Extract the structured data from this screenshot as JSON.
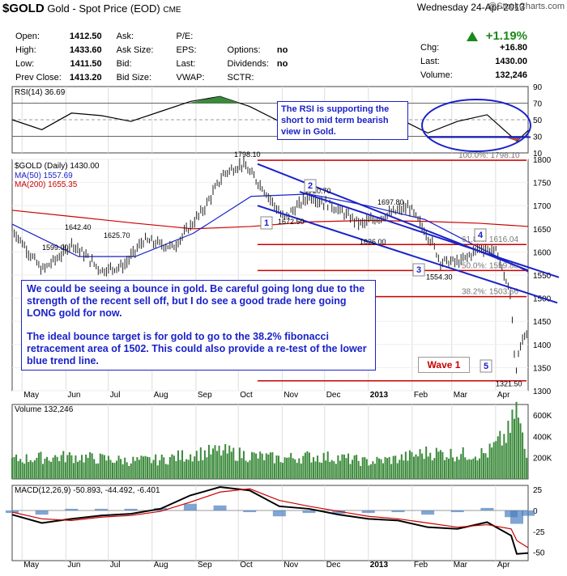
{
  "header": {
    "symbol": "$GOLD",
    "name": "Gold - Spot Price (EOD)",
    "exchange": "CME",
    "date": "Wednesday  24-Apr-2013",
    "logo": "@StockCharts.com"
  },
  "quote": {
    "rows": [
      [
        "Open:",
        "1412.50",
        "Ask:",
        "",
        "P/E:",
        "",
        "",
        ""
      ],
      [
        "High:",
        "1433.60",
        "Ask Size:",
        "",
        "EPS:",
        "",
        "Options:",
        "no"
      ],
      [
        "Low:",
        "1411.50",
        "Bid:",
        "",
        "Last:",
        "",
        "Dividends:",
        "no"
      ],
      [
        "Prev Close:",
        "1413.20",
        "Bid Size:",
        "",
        "VWAP:",
        "",
        "SCTR:",
        ""
      ]
    ],
    "pct_change": "+1.19%",
    "chg_label": "Chg:",
    "chg_value": "+16.80",
    "last_label": "Last:",
    "last_value": "1430.00",
    "volume_label": "Volume:",
    "volume_value": "132,246",
    "up_color": "#1a8a1a"
  },
  "annotations": {
    "rsi_note": "The RSI is supporting the short to mid term bearish view in Gold.",
    "main_note_1": "We could be seeing a bounce in gold.  Be careful going long due to the strength of the recent sell off, but I do see a good trade here going LONG gold for now.",
    "main_note_2": "The ideal bounce target is for gold to go to the 38.2% fibonacci retracement area of  1502.  This could also provide a re-test of the lower blue trend line.",
    "wave_label": "Wave 1",
    "wave_numbers": [
      "1",
      "2",
      "3",
      "4",
      "5"
    ],
    "fib_labels": [
      "100.0%: 1798.10",
      "61.8%: 1616.04",
      "50.0%: 1559.80",
      "38.2%: 1503.56"
    ],
    "price_points": [
      "1798.10",
      "1720.70",
      "1697.80",
      "1672.50",
      "1642.40",
      "1625.70",
      "1599.00",
      "1626.00",
      "1554.30",
      "1321.50"
    ]
  },
  "colors": {
    "accent": "#1a22c8",
    "fib": "#cc0000",
    "ma50": "#1a22c8",
    "ma200": "#cc0000",
    "rsi_fill": "#3b8a3b",
    "rsi_fill_dn": "#b05050"
  },
  "chart_data": [
    {
      "type": "line",
      "label": "RSI(14) 36.69",
      "ylim": [
        10,
        90
      ],
      "yticks": [
        10,
        30,
        50,
        70,
        90
      ],
      "x": [
        "2012-04-24",
        "2012-05-15",
        "2012-06-05",
        "2012-06-26",
        "2012-07-17",
        "2012-08-07",
        "2012-08-28",
        "2012-09-18",
        "2012-10-09",
        "2012-10-30",
        "2012-11-20",
        "2012-12-11",
        "2013-01-01",
        "2013-01-22",
        "2013-02-12",
        "2013-03-05",
        "2013-03-26",
        "2013-04-16",
        "2013-04-24"
      ],
      "values": [
        50,
        38,
        58,
        55,
        48,
        60,
        72,
        78,
        66,
        48,
        55,
        45,
        50,
        52,
        34,
        48,
        56,
        24,
        37
      ]
    },
    {
      "type": "line",
      "label": "$GOLD (Daily) 1430.00",
      "ylim": [
        1300,
        1800
      ],
      "yticks": [
        1300,
        1350,
        1400,
        1450,
        1500,
        1550,
        1600,
        1650,
        1700,
        1750,
        1800
      ],
      "xticks": [
        "May",
        "Jun",
        "Jul",
        "Aug",
        "Sep",
        "Oct",
        "Nov",
        "Dec",
        "2013",
        "Feb",
        "Mar",
        "Apr"
      ],
      "series": [
        {
          "name": "$GOLD (Daily) 1430.00",
          "x": [
            "2012-04-24",
            "2012-05-15",
            "2012-05-31",
            "2012-06-05",
            "2012-06-26",
            "2012-07-12",
            "2012-07-26",
            "2012-08-16",
            "2012-09-06",
            "2012-09-21",
            "2012-10-04",
            "2012-10-18",
            "2012-11-02",
            "2012-11-20",
            "2012-12-06",
            "2012-12-27",
            "2013-01-14",
            "2013-01-30",
            "2013-02-14",
            "2013-02-21",
            "2013-03-07",
            "2013-03-21",
            "2013-04-02",
            "2013-04-12",
            "2013-04-15",
            "2013-04-19",
            "2013-04-24"
          ],
          "values": [
            1650,
            1560,
            1599,
            1620,
            1560,
            1570,
            1625,
            1610,
            1690,
            1770,
            1790,
            1740,
            1672,
            1720,
            1700,
            1660,
            1680,
            1697,
            1626,
            1580,
            1578,
            1610,
            1600,
            1500,
            1340,
            1400,
            1430
          ]
        },
        {
          "name": "MA(50) 1557.69",
          "x": [
            "2012-04-24",
            "2012-06-10",
            "2012-07-20",
            "2012-08-30",
            "2012-10-10",
            "2012-11-20",
            "2012-12-31",
            "2013-02-10",
            "2013-03-20",
            "2013-04-24"
          ],
          "values": [
            1660,
            1590,
            1590,
            1640,
            1720,
            1725,
            1700,
            1670,
            1610,
            1557
          ]
        },
        {
          "name": "MA(200) 1655.35",
          "x": [
            "2012-04-24",
            "2012-06-10",
            "2012-07-20",
            "2012-08-30",
            "2012-10-10",
            "2012-11-20",
            "2012-12-31",
            "2013-02-10",
            "2013-03-20",
            "2013-04-24"
          ],
          "values": [
            1690,
            1675,
            1662,
            1650,
            1655,
            1665,
            1668,
            1666,
            1662,
            1655
          ]
        }
      ]
    },
    {
      "type": "bar",
      "label": "Volume 132,246",
      "ylim": [
        0,
        700000
      ],
      "yticks": [
        "200K",
        "400K",
        "600K"
      ],
      "x": [
        "2012-04-24",
        "2012-05-15",
        "2012-06-05",
        "2012-06-26",
        "2012-07-17",
        "2012-08-07",
        "2012-08-28",
        "2012-09-18",
        "2012-10-09",
        "2012-10-30",
        "2012-11-20",
        "2012-12-11",
        "2013-01-01",
        "2013-01-22",
        "2013-02-12",
        "2013-03-05",
        "2013-03-26",
        "2013-04-12",
        "2013-04-15",
        "2013-04-24"
      ],
      "values": [
        180000,
        200000,
        210000,
        190000,
        170000,
        180000,
        230000,
        260000,
        220000,
        190000,
        210000,
        200000,
        160000,
        190000,
        250000,
        230000,
        240000,
        450000,
        690000,
        132246
      ]
    },
    {
      "type": "line",
      "label": "MACD(12,26,9) -50.893, -44.492, -6.401",
      "ylim": [
        -60,
        30
      ],
      "yticks": [
        -50,
        -25,
        0,
        25
      ],
      "xticks": [
        "May",
        "Jun",
        "Jul",
        "Aug",
        "Sep",
        "Oct",
        "Nov",
        "Dec",
        "2013",
        "Feb",
        "Mar",
        "Apr"
      ],
      "x": [
        "2012-04-24",
        "2012-05-15",
        "2012-06-05",
        "2012-06-26",
        "2012-07-17",
        "2012-08-07",
        "2012-08-28",
        "2012-09-18",
        "2012-10-09",
        "2012-10-30",
        "2012-11-20",
        "2012-12-11",
        "2013-01-01",
        "2013-01-22",
        "2013-02-12",
        "2013-03-05",
        "2013-03-26",
        "2013-04-12",
        "2013-04-16",
        "2013-04-24"
      ],
      "series": [
        {
          "name": "MACD",
          "values": [
            -5,
            -15,
            -10,
            -6,
            -4,
            2,
            18,
            28,
            24,
            5,
            2,
            -5,
            -10,
            -12,
            -20,
            -22,
            -14,
            -30,
            -52,
            -50.893
          ]
        },
        {
          "name": "Signal",
          "values": [
            -2,
            -10,
            -12,
            -8,
            -6,
            -1,
            10,
            22,
            26,
            12,
            5,
            -1,
            -7,
            -10,
            -15,
            -20,
            -17,
            -22,
            -36,
            -44.492
          ]
        },
        {
          "name": "Histogram",
          "values": [
            -3,
            -5,
            2,
            2,
            2,
            3,
            8,
            6,
            -2,
            -7,
            -3,
            -4,
            -3,
            -2,
            -5,
            -2,
            3,
            -8,
            -16,
            -6.401
          ]
        }
      ]
    }
  ]
}
